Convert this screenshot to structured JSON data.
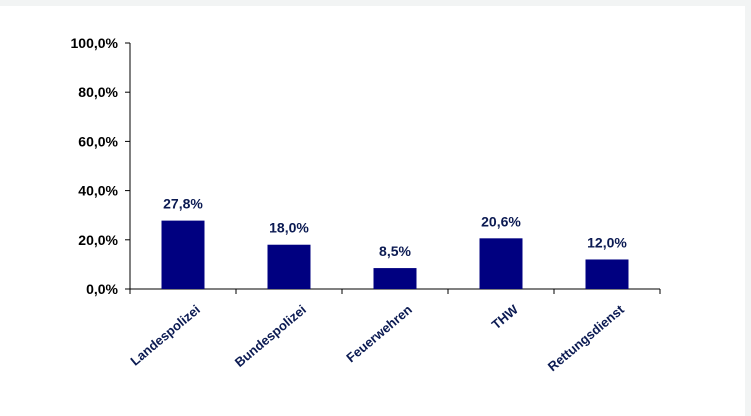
{
  "chart_data": {
    "type": "bar",
    "categories": [
      "Landespolizei",
      "Bundespolizei",
      "Feuerwehren",
      "THW",
      "Rettungsdienst"
    ],
    "values": [
      27.8,
      18.0,
      8.5,
      20.6,
      12.0
    ],
    "data_labels": [
      "27,8%",
      "18,0%",
      "8,5%",
      "20,6%",
      "12,0%"
    ],
    "y_ticks": [
      0,
      20,
      40,
      60,
      80,
      100
    ],
    "y_tick_labels": [
      "0,0%",
      "20,0%",
      "40,0%",
      "60,0%",
      "80,0%",
      "100,0%"
    ],
    "ylim": [
      0,
      100
    ],
    "title": "",
    "xlabel": "",
    "ylabel": "",
    "grid": false,
    "legend": "none",
    "bar_color": "#000080",
    "axis_color": "#000000"
  }
}
